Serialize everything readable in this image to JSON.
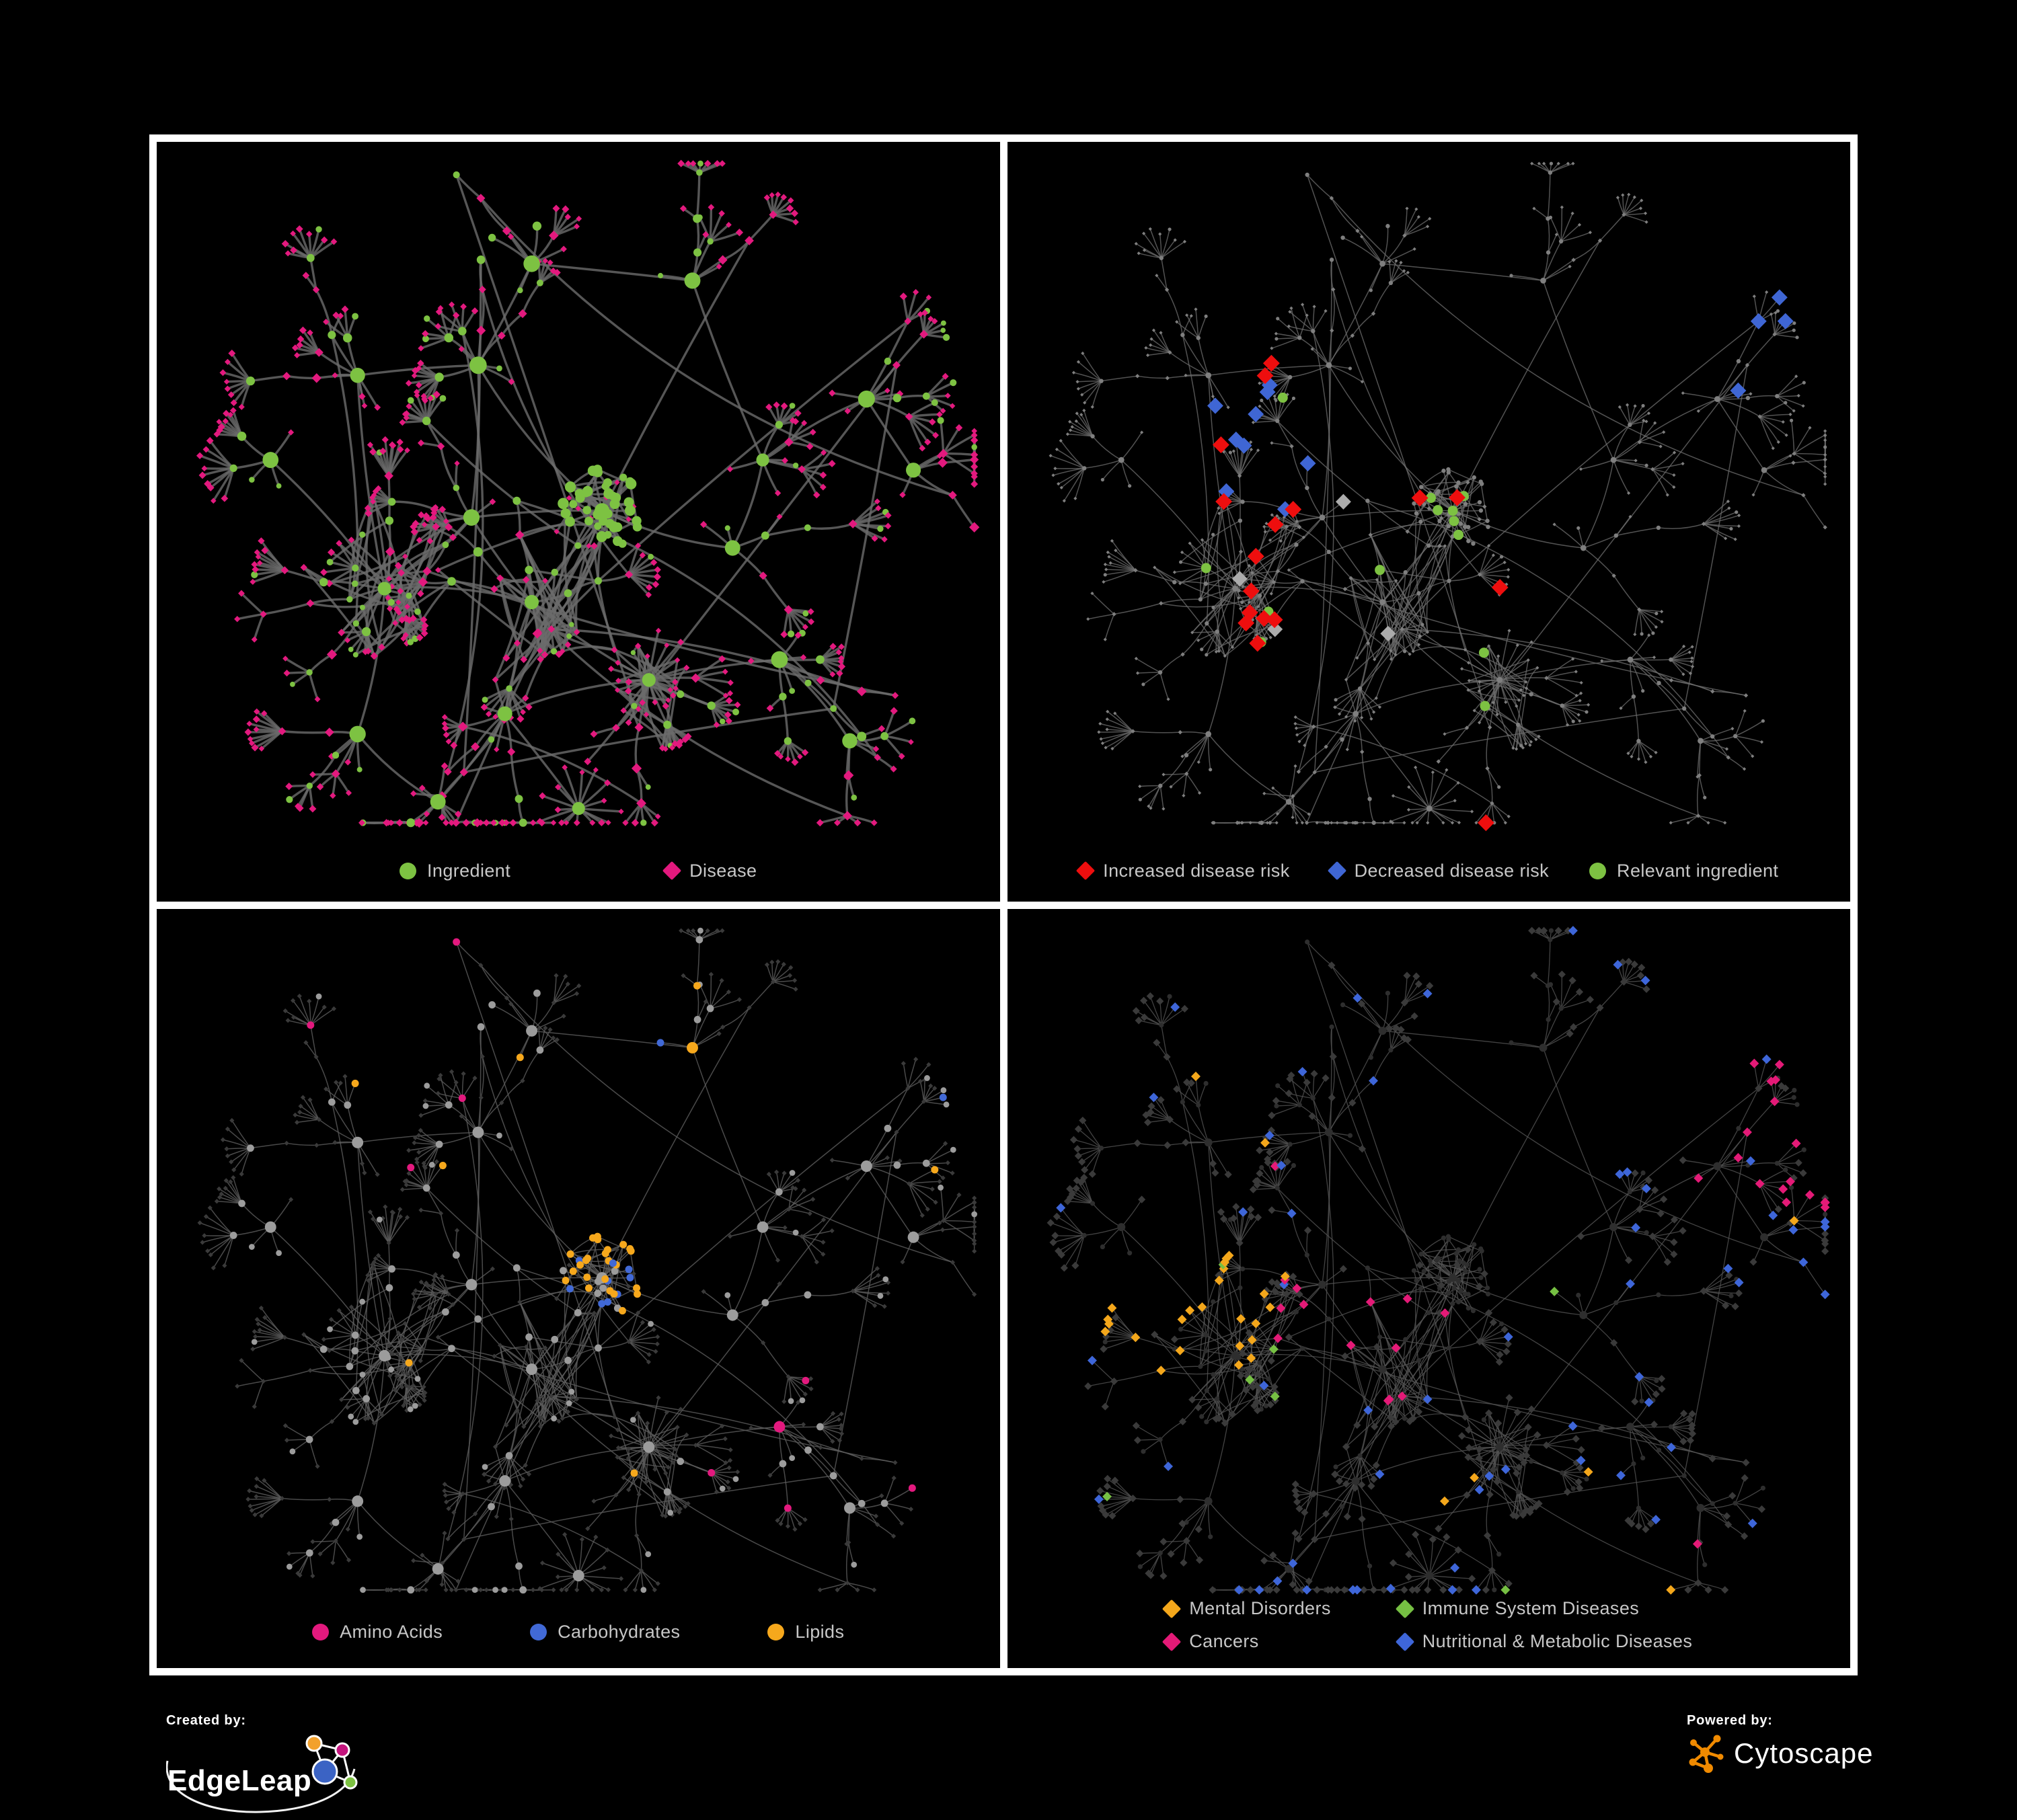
{
  "figure": {
    "background": "#000000",
    "frame_color": "#ffffff"
  },
  "colors": {
    "ingredient_green": "#7DC242",
    "disease_pink": "#E3197E",
    "increased_risk_red": "#EE0E0E",
    "decreased_risk_blue": "#3F66D4",
    "no_association_silver": "#ACACAC",
    "amino_acids_pink": "#E3197E",
    "carbohydrates_blue": "#4169D6",
    "lipids_orange": "#F6A81C",
    "mental_disorders_orange": "#F4A71B",
    "immune_green": "#76C043",
    "cancers_pink": "#E41A77",
    "nutritional_blue": "#3E66D9",
    "base_gray": "#7F7F7F",
    "base_dark": "#3A3A3A"
  },
  "panels": [
    {
      "id": "ingredient-disease-network",
      "legend": [
        {
          "shape": "circle",
          "color": "#7DC242",
          "label": "Ingredient"
        },
        {
          "shape": "diamond",
          "color": "#E3197E",
          "label": "Disease"
        }
      ]
    },
    {
      "id": "disease-risk-network",
      "legend": [
        {
          "shape": "diamond",
          "color": "#EE0E0E",
          "label": "Increased disease risk"
        },
        {
          "shape": "diamond",
          "color": "#3F66D4",
          "label": "Decreased disease risk"
        },
        {
          "shape": "circle",
          "color": "#7DC242",
          "label": "Relevant ingredient"
        }
      ]
    },
    {
      "id": "ingredient-classes-network",
      "legend": [
        {
          "shape": "circle",
          "color": "#E3197E",
          "label": "Amino Acids"
        },
        {
          "shape": "circle",
          "color": "#4169D6",
          "label": "Carbohydrates"
        },
        {
          "shape": "circle",
          "color": "#F6A81C",
          "label": "Lipids"
        }
      ]
    },
    {
      "id": "disease-classes-network",
      "legend": [
        {
          "shape": "diamond",
          "color": "#F4A71B",
          "label": "Mental Disorders"
        },
        {
          "shape": "diamond",
          "color": "#E41A77",
          "label": "Cancers"
        },
        {
          "shape": "diamond",
          "color": "#76C043",
          "label": "Immune System Diseases"
        },
        {
          "shape": "diamond",
          "color": "#3E66D9",
          "label": "Nutritional & Metabolic Diseases"
        }
      ]
    }
  ],
  "footer": {
    "created_by_label": "Created by:",
    "created_by_name": "EdgeLeap",
    "powered_by_label": "Powered by:",
    "powered_by_name": "Cytoscape"
  }
}
